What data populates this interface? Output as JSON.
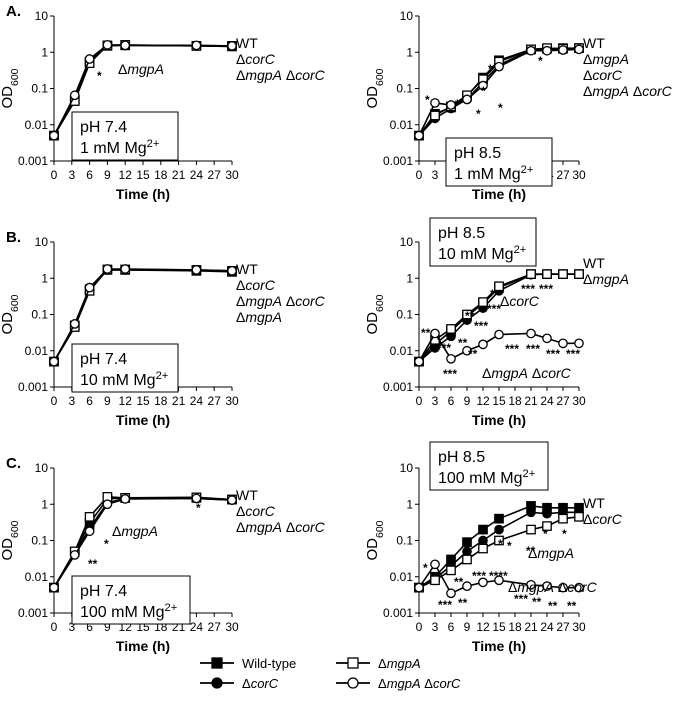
{
  "figure": {
    "panel_labels": [
      "A.",
      "B.",
      "C."
    ],
    "legend": [
      {
        "label": "Wild-type",
        "marker": "square",
        "fill": "filled"
      },
      {
        "label": "ΔmgpA",
        "marker": "square",
        "fill": "open"
      },
      {
        "label": "ΔcorC",
        "marker": "circle",
        "fill": "filled"
      },
      {
        "label": "ΔmgpA ΔcorC",
        "marker": "circle",
        "fill": "open"
      }
    ],
    "colors": {
      "line": "#000000",
      "open_fill": "#ffffff",
      "background": "#ffffff"
    }
  },
  "chart_data": [
    {
      "type": "line",
      "panel": "A",
      "side": "left",
      "xlabel": "Time (h)",
      "ylabel": "OD600",
      "yscale": "log",
      "xlim": [
        0,
        30
      ],
      "ylim": [
        0.001,
        10
      ],
      "xticks": [
        "0",
        "3",
        "6",
        "9",
        "12",
        "15",
        "18",
        "21",
        "24",
        "27",
        "30"
      ],
      "yticks": [
        "0.001",
        "0.01",
        "0.1",
        "1",
        "10"
      ],
      "condition": [
        "pH 7.4",
        "1 mM Mg2+"
      ],
      "side_labels": [
        "WT",
        "ΔcorC",
        "ΔmgpA ΔcorC"
      ],
      "inline_labels": [
        "ΔmgpA"
      ],
      "annotations": [
        "*"
      ],
      "x": [
        0,
        3.5,
        6,
        9,
        12,
        24,
        30
      ],
      "series": [
        {
          "name": "Wild-type",
          "values": [
            0.005,
            0.05,
            0.55,
            1.5,
            1.55,
            1.5,
            1.45
          ]
        },
        {
          "name": "ΔmgpA",
          "values": [
            0.005,
            0.045,
            0.5,
            1.55,
            1.6,
            1.5,
            1.5
          ]
        },
        {
          "name": "ΔcorC",
          "values": [
            0.005,
            0.06,
            0.6,
            1.55,
            1.55,
            1.5,
            1.45
          ]
        },
        {
          "name": "ΔmgpA ΔcorC",
          "values": [
            0.005,
            0.065,
            0.65,
            1.6,
            1.55,
            1.55,
            1.5
          ]
        }
      ]
    },
    {
      "type": "line",
      "panel": "A",
      "side": "right",
      "xlabel": "Time (h)",
      "ylabel": "OD600",
      "yscale": "log",
      "xlim": [
        0,
        30
      ],
      "ylim": [
        0.001,
        10
      ],
      "xticks": [
        "0",
        "3",
        "6",
        "9",
        "12",
        "15",
        "18",
        "21",
        "24",
        "27",
        "30"
      ],
      "yticks": [
        "0.001",
        "0.01",
        "0.1",
        "1",
        "10"
      ],
      "condition": [
        "pH 8.5",
        "1 mM Mg2+"
      ],
      "side_labels": [
        "WT",
        "ΔmgpA",
        "ΔcorC",
        "ΔmgpA ΔcorC"
      ],
      "inline_labels": [],
      "annotations": [
        "*",
        "*",
        "*",
        "*",
        "*",
        "*",
        "*"
      ],
      "x": [
        0,
        3,
        6,
        9,
        12,
        15,
        21,
        24,
        27,
        30
      ],
      "series": [
        {
          "name": "Wild-type",
          "values": [
            0.005,
            0.02,
            0.03,
            0.06,
            0.2,
            0.6,
            1.2,
            1.25,
            1.3,
            1.3
          ]
        },
        {
          "name": "ΔmgpA",
          "values": [
            0.005,
            0.018,
            0.032,
            0.065,
            0.18,
            0.55,
            1.2,
            1.3,
            1.25,
            1.3
          ]
        },
        {
          "name": "ΔcorC",
          "values": [
            0.005,
            0.015,
            0.028,
            0.05,
            0.15,
            0.45,
            1.15,
            1.2,
            1.2,
            1.25
          ]
        },
        {
          "name": "ΔmgpA ΔcorC",
          "values": [
            0.005,
            0.04,
            0.035,
            0.05,
            0.12,
            0.4,
            1.1,
            1.1,
            1.15,
            1.2
          ]
        }
      ]
    },
    {
      "type": "line",
      "panel": "B",
      "side": "left",
      "xlabel": "Time (h)",
      "ylabel": "OD600",
      "yscale": "log",
      "xlim": [
        0,
        30
      ],
      "ylim": [
        0.001,
        10
      ],
      "xticks": [
        "0",
        "3",
        "6",
        "9",
        "12",
        "15",
        "18",
        "21",
        "24",
        "27",
        "30"
      ],
      "yticks": [
        "0.001",
        "0.01",
        "0.1",
        "1",
        "10"
      ],
      "condition": [
        "pH 7.4",
        "10 mM Mg2+"
      ],
      "side_labels": [
        "WT",
        "ΔcorC",
        "ΔmgpA ΔcorC",
        "ΔmgpA"
      ],
      "inline_labels": [],
      "annotations": [],
      "x": [
        0,
        3.5,
        6,
        9,
        12,
        24,
        30
      ],
      "series": [
        {
          "name": "Wild-type",
          "values": [
            0.005,
            0.05,
            0.5,
            1.7,
            1.7,
            1.6,
            1.5
          ]
        },
        {
          "name": "ΔmgpA",
          "values": [
            0.005,
            0.045,
            0.45,
            1.75,
            1.75,
            1.7,
            1.6
          ]
        },
        {
          "name": "ΔcorC",
          "values": [
            0.005,
            0.05,
            0.55,
            1.7,
            1.7,
            1.65,
            1.55
          ]
        },
        {
          "name": "ΔmgpA ΔcorC",
          "values": [
            0.005,
            0.055,
            0.55,
            1.8,
            1.8,
            1.7,
            1.6
          ]
        }
      ]
    },
    {
      "type": "line",
      "panel": "B",
      "side": "right",
      "xlabel": "Time (h)",
      "ylabel": "OD600",
      "yscale": "log",
      "xlim": [
        0,
        30
      ],
      "ylim": [
        0.001,
        10
      ],
      "xticks": [
        "0",
        "3",
        "6",
        "9",
        "12",
        "15",
        "18",
        "21",
        "24",
        "27",
        "30"
      ],
      "yticks": [
        "0.001",
        "0.01",
        "0.1",
        "1",
        "10"
      ],
      "condition": [
        "pH 8.5",
        "10 mM Mg2+"
      ],
      "side_labels": [
        "WT",
        "ΔmgpA"
      ],
      "inline_labels": [
        "ΔcorC",
        "ΔmgpA ΔcorC"
      ],
      "annotations": [
        "**",
        "***",
        "***",
        "**",
        "**",
        "**",
        "***",
        "***",
        "***",
        "***",
        "***",
        "***",
        "***",
        "***",
        "*",
        "*",
        "*",
        "*",
        "*"
      ],
      "x": [
        0,
        3,
        6,
        9,
        12,
        15,
        21,
        24,
        27,
        30
      ],
      "series": [
        {
          "name": "Wild-type",
          "values": [
            0.005,
            0.015,
            0.035,
            0.09,
            0.2,
            0.55,
            1.3,
            1.3,
            1.3,
            1.3
          ]
        },
        {
          "name": "ΔmgpA",
          "values": [
            0.005,
            0.02,
            0.04,
            0.1,
            0.22,
            0.6,
            1.3,
            1.3,
            1.3,
            1.3
          ]
        },
        {
          "name": "ΔcorC",
          "values": [
            0.005,
            0.012,
            0.025,
            0.07,
            0.15,
            0.45,
            1.25,
            1.3,
            1.3,
            1.3
          ]
        },
        {
          "name": "ΔmgpA ΔcorC",
          "values": [
            0.005,
            0.03,
            0.006,
            0.01,
            0.015,
            0.028,
            0.03,
            0.022,
            0.016,
            0.016
          ]
        }
      ]
    },
    {
      "type": "line",
      "panel": "C",
      "side": "left",
      "xlabel": "Time (h)",
      "ylabel": "OD600",
      "yscale": "log",
      "xlim": [
        0,
        30
      ],
      "ylim": [
        0.001,
        10
      ],
      "xticks": [
        "0",
        "3",
        "6",
        "9",
        "12",
        "15",
        "18",
        "21",
        "24",
        "27",
        "30"
      ],
      "yticks": [
        "0.001",
        "0.01",
        "0.1",
        "1",
        "10"
      ],
      "condition": [
        "pH 7.4",
        "100 mM Mg2+"
      ],
      "side_labels": [
        "WT",
        "ΔcorC",
        "ΔmgpA ΔcorC"
      ],
      "inline_labels": [
        "ΔmgpA"
      ],
      "annotations": [
        "**",
        "*",
        "*"
      ],
      "x": [
        0,
        3.5,
        6,
        9,
        12,
        24,
        30
      ],
      "series": [
        {
          "name": "Wild-type",
          "values": [
            0.005,
            0.05,
            0.3,
            1.4,
            1.5,
            1.5,
            1.35
          ]
        },
        {
          "name": "ΔmgpA",
          "values": [
            0.005,
            0.05,
            0.45,
            1.6,
            1.5,
            1.55,
            1.35
          ]
        },
        {
          "name": "ΔcorC",
          "values": [
            0.005,
            0.045,
            0.22,
            1.1,
            1.45,
            1.45,
            1.3
          ]
        },
        {
          "name": "ΔmgpA ΔcorC",
          "values": [
            0.005,
            0.04,
            0.18,
            1.0,
            1.4,
            1.45,
            1.3
          ]
        }
      ]
    },
    {
      "type": "line",
      "panel": "C",
      "side": "right",
      "xlabel": "Time (h)",
      "ylabel": "OD600",
      "yscale": "log",
      "xlim": [
        0,
        30
      ],
      "ylim": [
        0.001,
        10
      ],
      "xticks": [
        "0",
        "3",
        "6",
        "9",
        "12",
        "15",
        "18",
        "21",
        "24",
        "27",
        "30"
      ],
      "yticks": [
        "0.001",
        "0.01",
        "0.1",
        "1",
        "10"
      ],
      "condition": [
        "pH 8.5",
        "100 mM Mg2+"
      ],
      "side_labels": [
        "WT",
        "ΔcorC"
      ],
      "inline_labels": [
        "ΔmgpA",
        "ΔmgpA ΔcorC"
      ],
      "annotations": [
        "*",
        "**",
        "***",
        "**",
        "***",
        "****",
        "***",
        "**",
        "**",
        "**",
        "*",
        "**",
        "*",
        "*",
        "*"
      ],
      "x": [
        0,
        3,
        6,
        9,
        12,
        15,
        21,
        24,
        27,
        30
      ],
      "series": [
        {
          "name": "Wild-type",
          "values": [
            0.005,
            0.01,
            0.03,
            0.09,
            0.2,
            0.4,
            0.9,
            0.8,
            0.8,
            0.8
          ]
        },
        {
          "name": "ΔmgpA",
          "values": [
            0.005,
            0.008,
            0.015,
            0.03,
            0.06,
            0.1,
            0.2,
            0.25,
            0.4,
            0.45
          ]
        },
        {
          "name": "ΔcorC",
          "values": [
            0.005,
            0.009,
            0.02,
            0.05,
            0.1,
            0.2,
            0.6,
            0.55,
            0.6,
            0.6
          ]
        },
        {
          "name": "ΔmgpA ΔcorC",
          "values": [
            0.005,
            0.022,
            0.0035,
            0.0055,
            0.007,
            0.008,
            0.006,
            0.0055,
            0.005,
            0.005
          ]
        }
      ]
    }
  ]
}
